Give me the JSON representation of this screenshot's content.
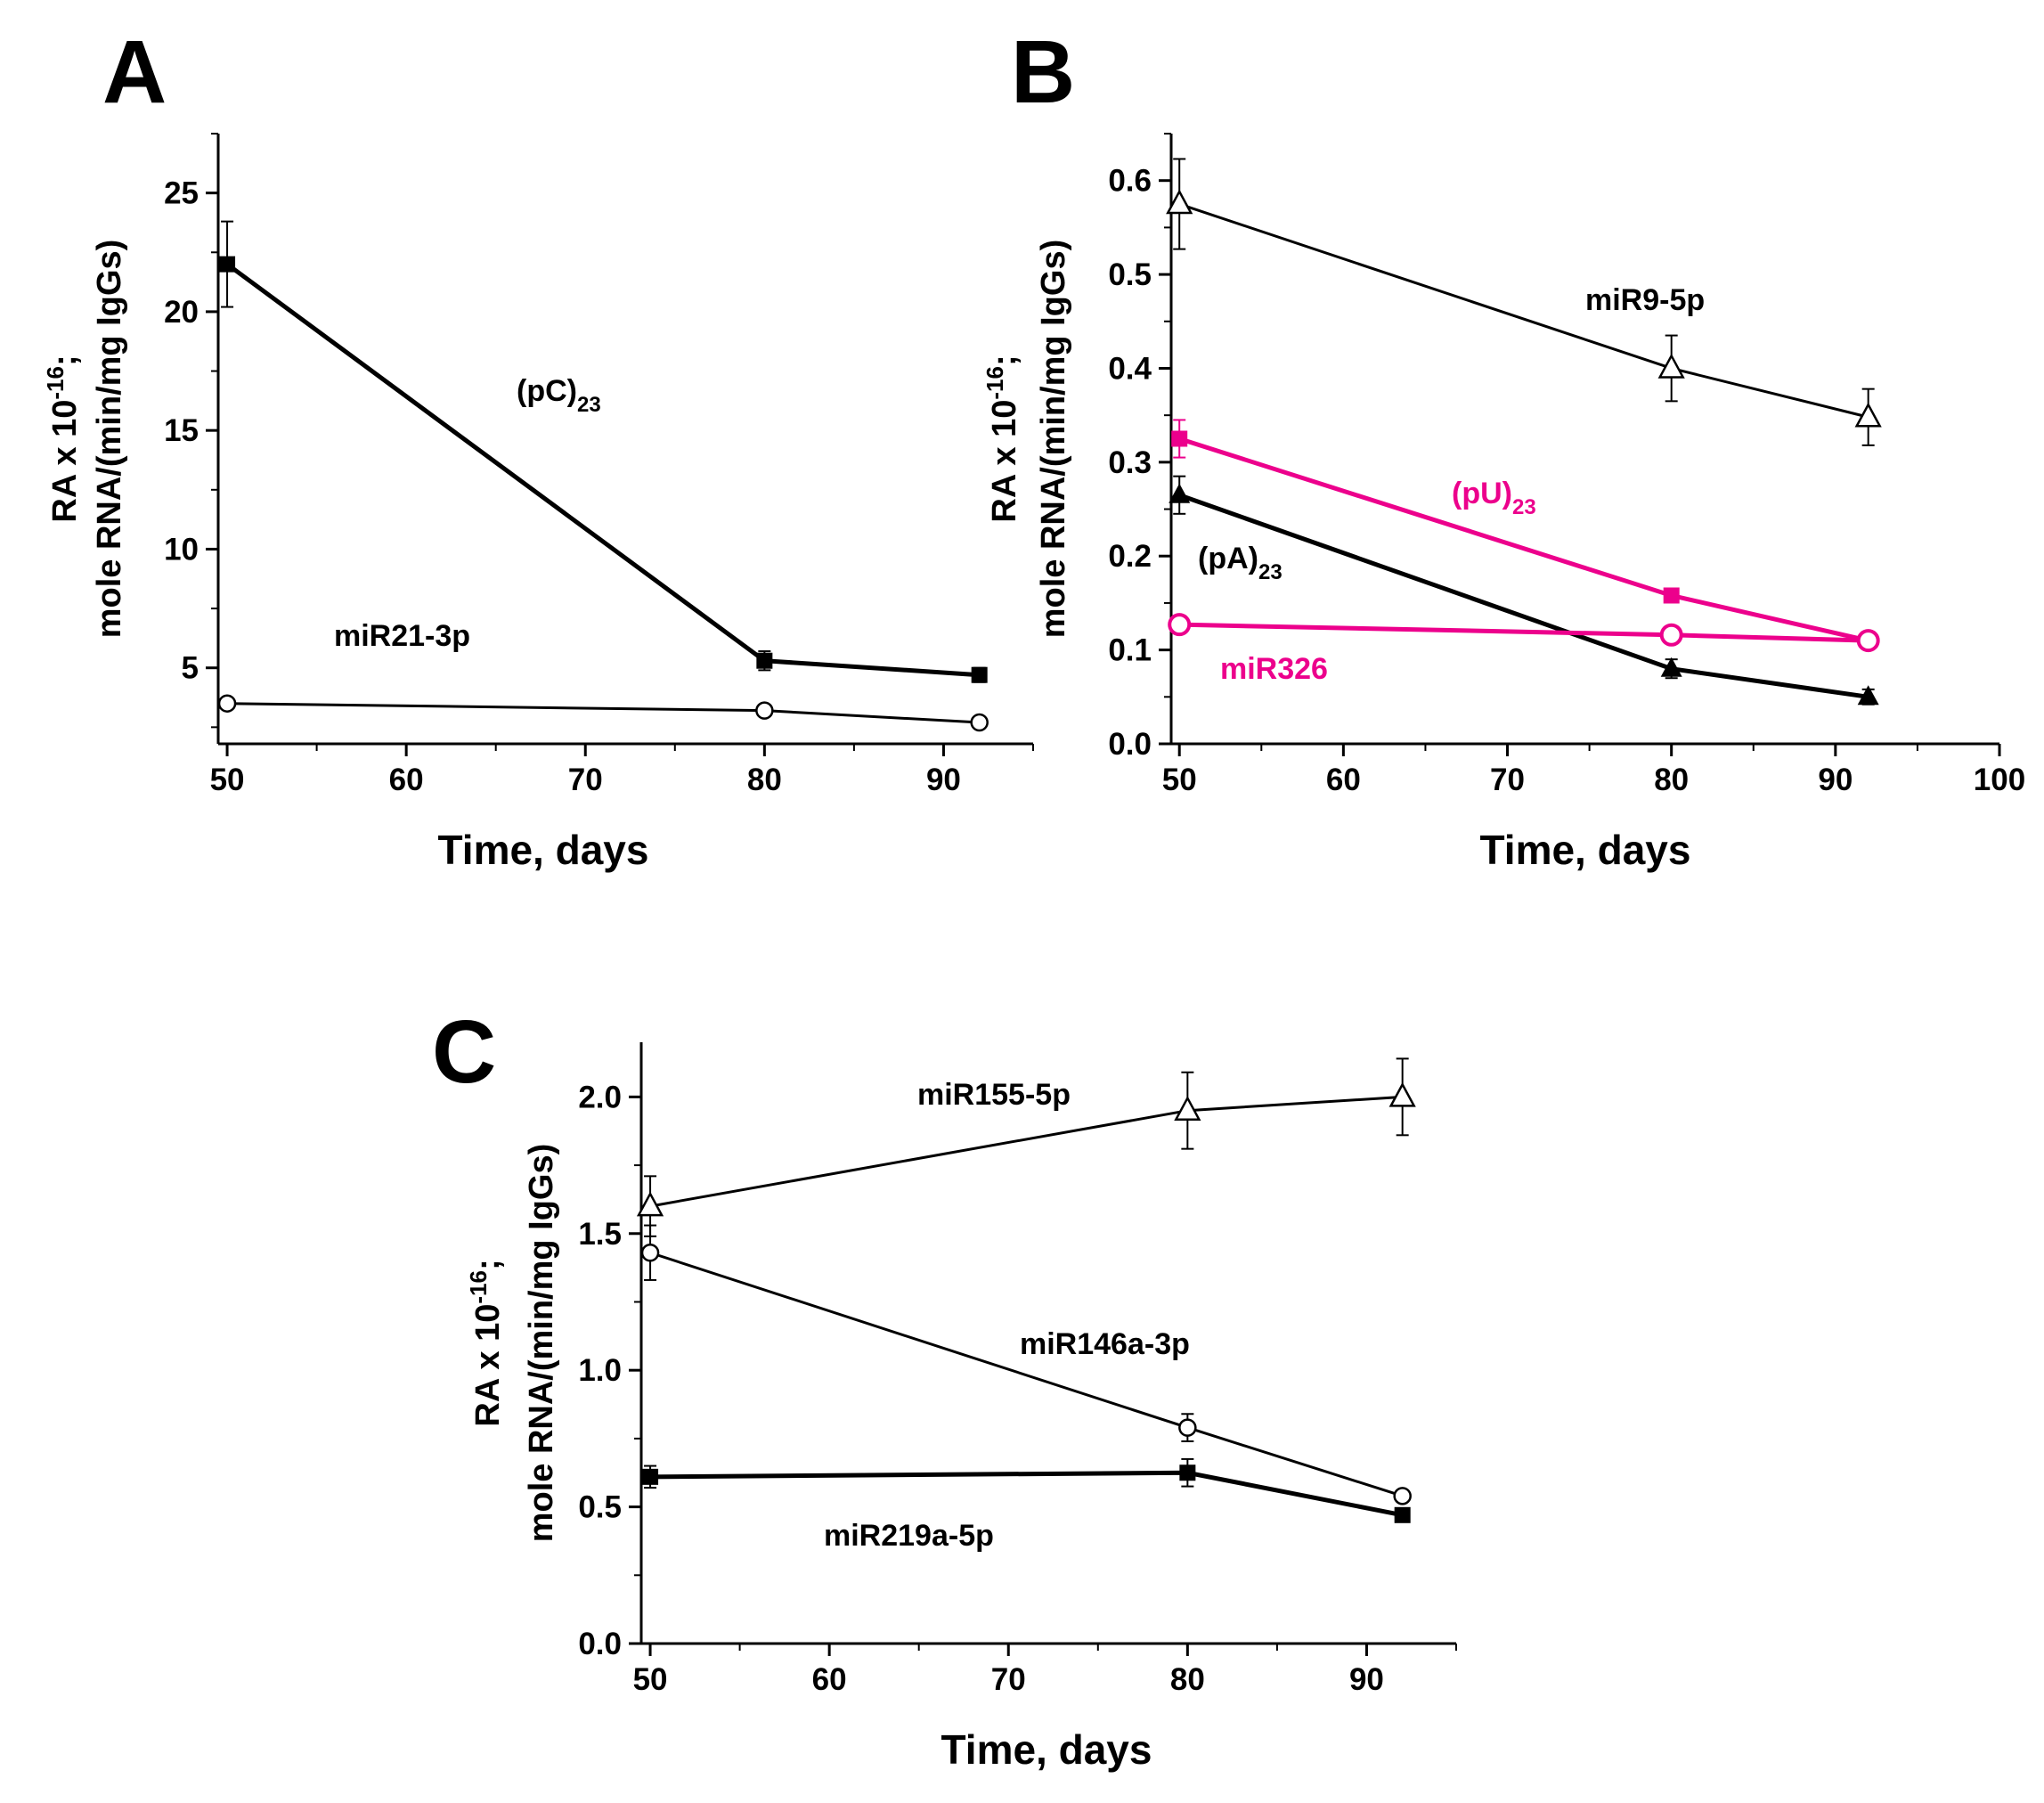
{
  "chart_data": [
    {
      "panel": "A",
      "type": "line",
      "xlabel": "Time, days",
      "ylabel_line1": "RA x 10",
      "ylabel_exp": "-16",
      "ylabel_suffix": ";",
      "ylabel_line2": "mole RNA/(min/mg IgGs)",
      "xlim": [
        49.5,
        95
      ],
      "ylim": [
        1.8,
        27.5
      ],
      "xticks": [
        50,
        60,
        70,
        80,
        90
      ],
      "xtick_labels": [
        "50",
        "60",
        "70",
        "80",
        "90"
      ],
      "yticks": [
        5,
        10,
        15,
        20,
        25
      ],
      "ytick_labels": [
        "5",
        "10",
        "15",
        "20",
        "25"
      ],
      "series": [
        {
          "name": "(pC)",
          "name_sub": "23",
          "marker": "square-filled",
          "color": "#000000",
          "x": [
            50,
            80,
            92
          ],
          "y": [
            22.0,
            5.3,
            4.7
          ],
          "err": [
            1.8,
            0.4,
            0.3
          ]
        },
        {
          "name": "miR21-3p",
          "name_sub": "",
          "marker": "circle-open",
          "color": "#000000",
          "x": [
            50,
            80,
            92
          ],
          "y": [
            3.5,
            3.2,
            2.7
          ],
          "err": [
            0.1,
            0.1,
            0.1
          ]
        }
      ]
    },
    {
      "panel": "B",
      "type": "line",
      "xlabel": "Time, days",
      "ylabel_line1": "RA x 10",
      "ylabel_exp": "-16",
      "ylabel_suffix": ";",
      "ylabel_line2": "mole RNA/(min/mg IgGs)",
      "xlim": [
        49.5,
        100
      ],
      "ylim": [
        0,
        0.65
      ],
      "xticks": [
        50,
        60,
        70,
        80,
        90,
        100
      ],
      "xtick_labels": [
        "50",
        "60",
        "70",
        "80",
        "90",
        "100"
      ],
      "yticks": [
        0,
        0.1,
        0.2,
        0.3,
        0.4,
        0.5,
        0.6
      ],
      "ytick_labels": [
        "0.0",
        "0.1",
        "0.2",
        "0.3",
        "0.4",
        "0.5",
        "0.6"
      ],
      "series": [
        {
          "name": "miR9-5p",
          "name_sub": "",
          "marker": "triangle-open",
          "color": "#000000",
          "x": [
            50,
            80,
            92
          ],
          "y": [
            0.575,
            0.4,
            0.348
          ],
          "err": [
            0.048,
            0.035,
            0.03
          ]
        },
        {
          "name": "(pU)",
          "name_sub": "23",
          "marker": "square-filled",
          "color": "#ec008c",
          "x": [
            50,
            80,
            92
          ],
          "y": [
            0.325,
            0.158,
            0.11
          ],
          "err": [
            0.02,
            0.006,
            0.005
          ]
        },
        {
          "name": "(pA)",
          "name_sub": "23",
          "marker": "triangle-filled",
          "color": "#000000",
          "x": [
            50,
            80,
            92
          ],
          "y": [
            0.265,
            0.08,
            0.05
          ],
          "err": [
            0.02,
            0.01,
            0.008
          ]
        },
        {
          "name": "miR326",
          "name_sub": "",
          "marker": "circle-open",
          "color": "#ec008c",
          "x": [
            50,
            80,
            92
          ],
          "y": [
            0.127,
            0.116,
            0.11
          ],
          "err": [
            0.004,
            0.004,
            0.004
          ]
        }
      ]
    },
    {
      "panel": "C",
      "type": "line",
      "xlabel": "Time, days",
      "ylabel_line1": "RA x 10",
      "ylabel_exp": "-16",
      "ylabel_suffix": ";",
      "ylabel_line2": "mole RNA/(min/mg IgGs)",
      "xlim": [
        49.5,
        95
      ],
      "ylim": [
        0,
        2.2
      ],
      "xticks": [
        50,
        60,
        70,
        80,
        90
      ],
      "xtick_labels": [
        "50",
        "60",
        "70",
        "80",
        "90"
      ],
      "yticks": [
        0,
        0.5,
        1.0,
        1.5,
        2.0
      ],
      "ytick_labels": [
        "0.0",
        "0.5",
        "1.0",
        "1.5",
        "2.0"
      ],
      "series": [
        {
          "name": "miR155-5p",
          "name_sub": "",
          "marker": "triangle-open",
          "color": "#000000",
          "x": [
            50,
            80,
            92
          ],
          "y": [
            1.6,
            1.95,
            2.0
          ],
          "err": [
            0.11,
            0.14,
            0.14
          ]
        },
        {
          "name": "miR146a-3p",
          "name_sub": "",
          "marker": "circle-open",
          "color": "#000000",
          "x": [
            50,
            80,
            92
          ],
          "y": [
            1.43,
            0.79,
            0.54
          ],
          "err": [
            0.1,
            0.05,
            0.02
          ]
        },
        {
          "name": "miR219a-5p",
          "name_sub": "",
          "marker": "square-filled",
          "color": "#000000",
          "x": [
            50,
            80,
            92
          ],
          "y": [
            0.61,
            0.625,
            0.47
          ],
          "err": [
            0.04,
            0.05,
            0.02
          ]
        }
      ]
    }
  ]
}
